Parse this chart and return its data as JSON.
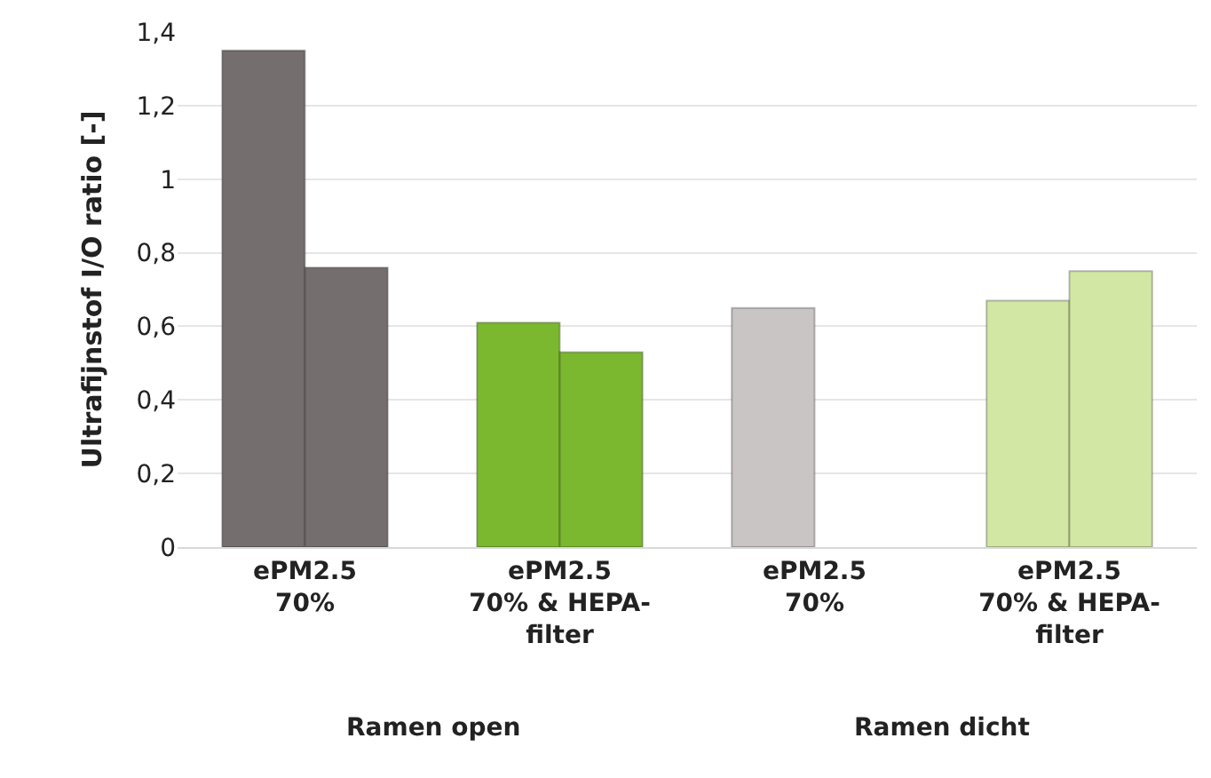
{
  "chart_data": {
    "type": "bar",
    "ylabel": "Ultrafijnstof I/O ratio [-]",
    "categories": [
      "ePM2.5\n70%",
      "ePM2.5\n70% & HEPA-\nfilter",
      "ePM2.5\n70%",
      "ePM2.5\n70% & HEPA-\nfilter"
    ],
    "series": [
      {
        "colors": [
          "#756e6e",
          "#7cb82f",
          "#c9c5c5",
          "#d3e7a4"
        ],
        "values": [
          1.35,
          0.61,
          0.65,
          0.67
        ]
      },
      {
        "colors": [
          "#756e6e",
          "#7cb82f",
          "#c9c5c5",
          "#d3e7a4"
        ],
        "values": [
          0.76,
          0.53,
          null,
          0.75
        ]
      }
    ],
    "ylim": [
      0,
      1.4
    ],
    "yticks": [
      0,
      {
        "value": 0.2,
        "label": "0,2"
      },
      {
        "value": 0.4,
        "label": "0,4"
      },
      {
        "value": 0.6,
        "label": "0,6"
      },
      {
        "value": 0.8,
        "label": "0,8"
      },
      1,
      {
        "value": 1.2,
        "label": "1,2"
      },
      {
        "value": 1.4,
        "label": "1,4"
      }
    ],
    "grid": "y",
    "annotations": [
      "Ramen open",
      "Ramen dicht"
    ]
  }
}
